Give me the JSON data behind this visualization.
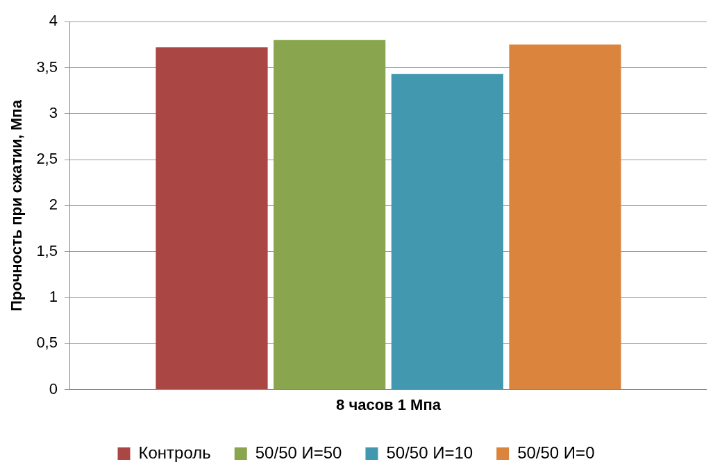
{
  "chart_data": {
    "type": "bar",
    "categories": [
      "8 часов 1 Мпа"
    ],
    "ylabel": "Прочность при сжатии, Мпа",
    "series": [
      {
        "name": "Контроль",
        "color": "#aa4644",
        "values": [
          3.72
        ]
      },
      {
        "name": "50/50 И=50",
        "color": "#89a54e",
        "values": [
          3.8
        ]
      },
      {
        "name": "50/50 И=10",
        "color": "#4198af",
        "values": [
          3.43
        ]
      },
      {
        "name": "50/50 И=0",
        "color": "#db843d",
        "values": [
          3.75
        ]
      }
    ],
    "ylim": [
      0,
      4
    ],
    "yticks": [
      0,
      {
        "value": 0.5,
        "label": "0,5"
      },
      1,
      {
        "value": 1.5,
        "label": "1,5"
      },
      2,
      {
        "value": 2.5,
        "label": "2,5"
      },
      3,
      {
        "value": 3.5,
        "label": "3,5"
      },
      4
    ],
    "grid": "y",
    "legend": "bottom"
  }
}
